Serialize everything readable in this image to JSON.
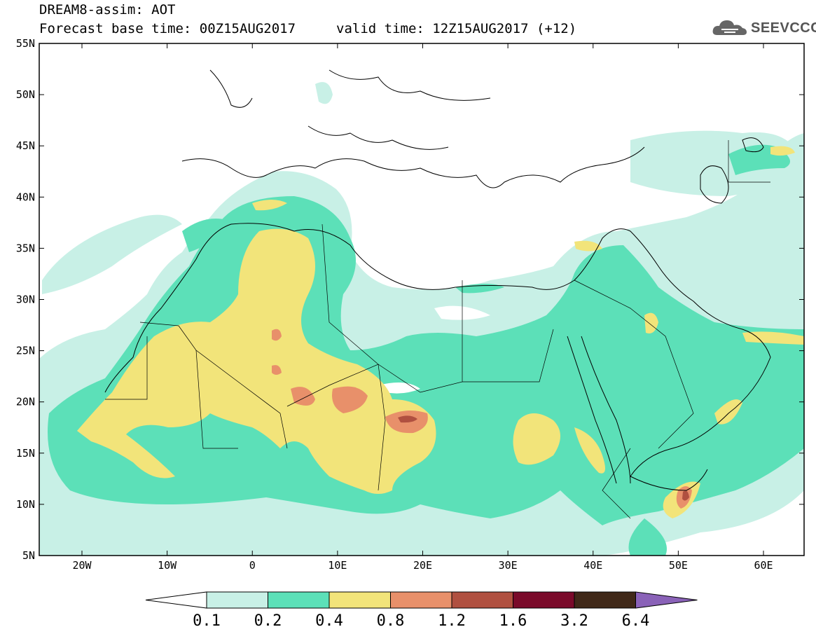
{
  "header": {
    "model_title": "DREAM8-assim: AOT",
    "base_time": "Forecast base time: 00Z15AUG2017",
    "valid_time": "valid time: 12Z15AUG2017 (+12)"
  },
  "logo": {
    "text": "SEEVCCC",
    "icon": "cloud-icon"
  },
  "axes": {
    "lat_labels": [
      "55N",
      "50N",
      "45N",
      "40N",
      "35N",
      "30N",
      "25N",
      "20N",
      "15N",
      "10N",
      "5N"
    ],
    "lon_labels": [
      "20W",
      "10W",
      "0",
      "10E",
      "20E",
      "30E",
      "40E",
      "50E",
      "60E"
    ]
  },
  "colorbar": {
    "ticks": [
      "0.1",
      "0.2",
      "0.4",
      "0.8",
      "1.2",
      "1.6",
      "3.2",
      "6.4"
    ],
    "colors": [
      "#ffffff",
      "#c8f0e6",
      "#5ce0b8",
      "#f2e47a",
      "#e8906a",
      "#b05040",
      "#7a0a2a",
      "#402818",
      "#8a62b8"
    ]
  },
  "colors": {
    "ocean_land": "#ffffff",
    "level_0_1": "#c8f0e6",
    "level_0_2": "#5ce0b8",
    "level_0_4": "#f2e47a",
    "level_0_8": "#e8906a",
    "level_1_2": "#b05040"
  }
}
